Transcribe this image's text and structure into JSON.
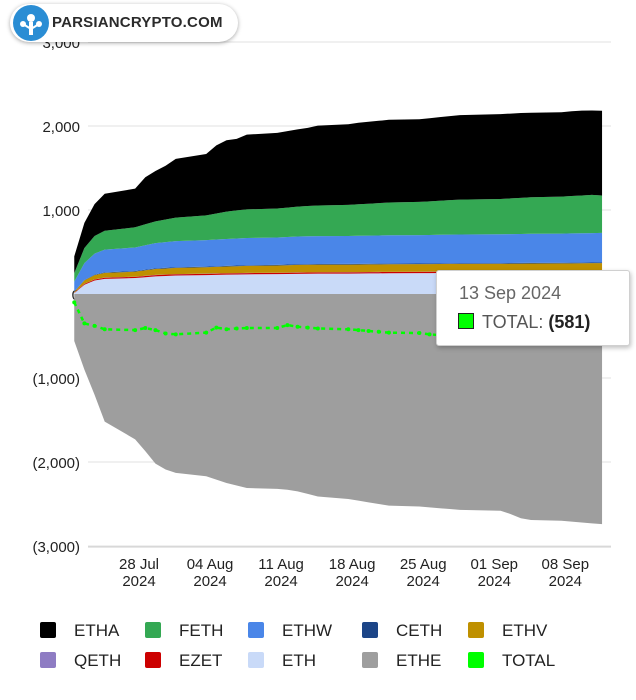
{
  "logo": {
    "text": "PARSIANCRYPTO.COM"
  },
  "tooltip": {
    "date": "13 Sep 2024",
    "series": "TOTAL",
    "value": "(581)"
  },
  "chart_data": {
    "type": "area",
    "stacked": true,
    "grid": "horizontal",
    "ylim": [
      -3000,
      3000
    ],
    "y_ticks": [
      {
        "value": 3000,
        "label": "3,000"
      },
      {
        "value": 2000,
        "label": "2,000"
      },
      {
        "value": 1000,
        "label": "1,000"
      },
      {
        "value": 0,
        "label": "0"
      },
      {
        "value": -1000,
        "label": "(1,000)"
      },
      {
        "value": -2000,
        "label": "(2,000)"
      },
      {
        "value": -3000,
        "label": "(3,000)"
      }
    ],
    "x_ticks": [
      {
        "date": "2024-07-28",
        "line1": "28 Jul",
        "line2": "2024"
      },
      {
        "date": "2024-08-04",
        "line1": "04 Aug",
        "line2": "2024"
      },
      {
        "date": "2024-08-11",
        "line1": "11 Aug",
        "line2": "2024"
      },
      {
        "date": "2024-08-18",
        "line1": "18 Aug",
        "line2": "2024"
      },
      {
        "date": "2024-08-25",
        "line1": "25 Aug",
        "line2": "2024"
      },
      {
        "date": "2024-09-01",
        "line1": "01 Sep",
        "line2": "2024"
      },
      {
        "date": "2024-09-08",
        "line1": "08 Sep",
        "line2": "2024"
      }
    ],
    "dates": [
      "2024-07-23",
      "2024-07-24",
      "2024-07-25",
      "2024-07-26",
      "2024-07-29",
      "2024-07-30",
      "2024-07-31",
      "2024-08-01",
      "2024-08-02",
      "2024-08-05",
      "2024-08-06",
      "2024-08-07",
      "2024-08-08",
      "2024-08-09",
      "2024-08-12",
      "2024-08-13",
      "2024-08-14",
      "2024-08-15",
      "2024-08-16",
      "2024-08-19",
      "2024-08-20",
      "2024-08-21",
      "2024-08-22",
      "2024-08-23",
      "2024-08-26",
      "2024-08-27",
      "2024-08-28",
      "2024-08-29",
      "2024-08-30",
      "2024-09-03",
      "2024-09-04",
      "2024-09-05",
      "2024-09-06",
      "2024-09-09",
      "2024-09-10",
      "2024-09-11",
      "2024-09-12",
      "2024-09-13"
    ],
    "series": [
      {
        "name": "ETHE",
        "color": "#9e9e9e",
        "values": [
          -560,
          -900,
          -1200,
          -1520,
          -1730,
          -1870,
          -2020,
          -2090,
          -2130,
          -2170,
          -2210,
          -2250,
          -2280,
          -2310,
          -2320,
          -2330,
          -2350,
          -2380,
          -2410,
          -2440,
          -2460,
          -2480,
          -2500,
          -2520,
          -2530,
          -2540,
          -2550,
          -2560,
          -2570,
          -2580,
          -2620,
          -2670,
          -2690,
          -2700,
          -2710,
          -2720,
          -2730,
          -2740
        ]
      },
      {
        "name": "ETH",
        "color": "#c9daf8",
        "values": [
          10,
          110,
          160,
          180,
          190,
          200,
          210,
          215,
          220,
          225,
          228,
          230,
          232,
          234,
          236,
          238,
          240,
          241,
          242,
          243,
          244,
          245,
          246,
          247,
          248,
          249,
          250,
          251,
          252,
          253,
          254,
          255,
          256,
          257,
          258,
          259,
          260,
          261
        ]
      },
      {
        "name": "EZET",
        "color": "#cc0000",
        "values": [
          5,
          10,
          12,
          14,
          14,
          15,
          15,
          15,
          15,
          15,
          15,
          15,
          15,
          15,
          15,
          15,
          15,
          15,
          15,
          15,
          15,
          15,
          15,
          15,
          15,
          15,
          15,
          15,
          15,
          15,
          15,
          15,
          15,
          15,
          15,
          15,
          15,
          15
        ]
      },
      {
        "name": "QETH",
        "color": "#8e7cc3",
        "values": [
          1,
          2,
          2,
          2,
          2,
          2,
          2,
          2,
          2,
          2,
          2,
          2,
          2,
          2,
          2,
          2,
          2,
          2,
          2,
          2,
          2,
          2,
          2,
          2,
          2,
          2,
          2,
          2,
          2,
          2,
          2,
          2,
          2,
          2,
          2,
          2,
          2,
          2
        ]
      },
      {
        "name": "ETHV",
        "color": "#bf9000",
        "values": [
          10,
          40,
          50,
          55,
          60,
          65,
          70,
          72,
          74,
          76,
          78,
          80,
          82,
          84,
          86,
          88,
          90,
          90,
          90,
          90,
          90,
          90,
          90,
          90,
          90,
          90,
          90,
          90,
          90,
          90,
          90,
          90,
          90,
          90,
          90,
          90,
          90,
          90
        ]
      },
      {
        "name": "CETH",
        "color": "#1c4587",
        "values": [
          2,
          5,
          6,
          7,
          8,
          8,
          8,
          8,
          8,
          8,
          8,
          8,
          8,
          8,
          8,
          8,
          8,
          8,
          8,
          8,
          8,
          8,
          8,
          8,
          8,
          8,
          8,
          8,
          8,
          8,
          8,
          8,
          8,
          8,
          8,
          8,
          8,
          8
        ]
      },
      {
        "name": "ETHW",
        "color": "#4a86e8",
        "values": [
          120,
          200,
          250,
          270,
          280,
          290,
          300,
          305,
          310,
          315,
          318,
          320,
          322,
          324,
          326,
          328,
          330,
          331,
          332,
          333,
          334,
          335,
          336,
          337,
          338,
          339,
          340,
          341,
          342,
          343,
          344,
          345,
          346,
          347,
          348,
          349,
          350,
          351
        ]
      },
      {
        "name": "FETH",
        "color": "#34a853",
        "values": [
          100,
          180,
          210,
          225,
          240,
          250,
          260,
          270,
          280,
          295,
          310,
          325,
          335,
          340,
          345,
          350,
          355,
          360,
          365,
          370,
          375,
          380,
          385,
          390,
          395,
          400,
          405,
          410,
          415,
          420,
          425,
          430,
          435,
          440,
          445,
          450,
          455,
          445
        ]
      },
      {
        "name": "ETHA",
        "color": "#000000",
        "values": [
          200,
          300,
          380,
          440,
          460,
          560,
          600,
          640,
          700,
          730,
          810,
          850,
          850,
          890,
          900,
          910,
          920,
          930,
          950,
          960,
          970,
          975,
          980,
          985,
          985,
          990,
          995,
          1000,
          1005,
          1010,
          1010,
          1010,
          1005,
          1005,
          1010,
          1010,
          1005,
          1010
        ]
      },
      {
        "name": "TOTAL",
        "color": "#00ff00",
        "line": true,
        "values": [
          -100,
          -350,
          -380,
          -420,
          -430,
          -405,
          -430,
          -470,
          -480,
          -460,
          -400,
          -420,
          -410,
          -405,
          -405,
          -370,
          -390,
          -400,
          -410,
          -420,
          -430,
          -440,
          -450,
          -460,
          -465,
          -480,
          -490,
          -500,
          -510,
          -520,
          -530,
          -540,
          -550,
          -555,
          -560,
          -565,
          -570,
          -581
        ]
      }
    ],
    "legend": [
      "ETHA",
      "FETH",
      "ETHW",
      "CETH",
      "ETHV",
      "QETH",
      "EZET",
      "ETH",
      "ETHE",
      "TOTAL"
    ]
  }
}
